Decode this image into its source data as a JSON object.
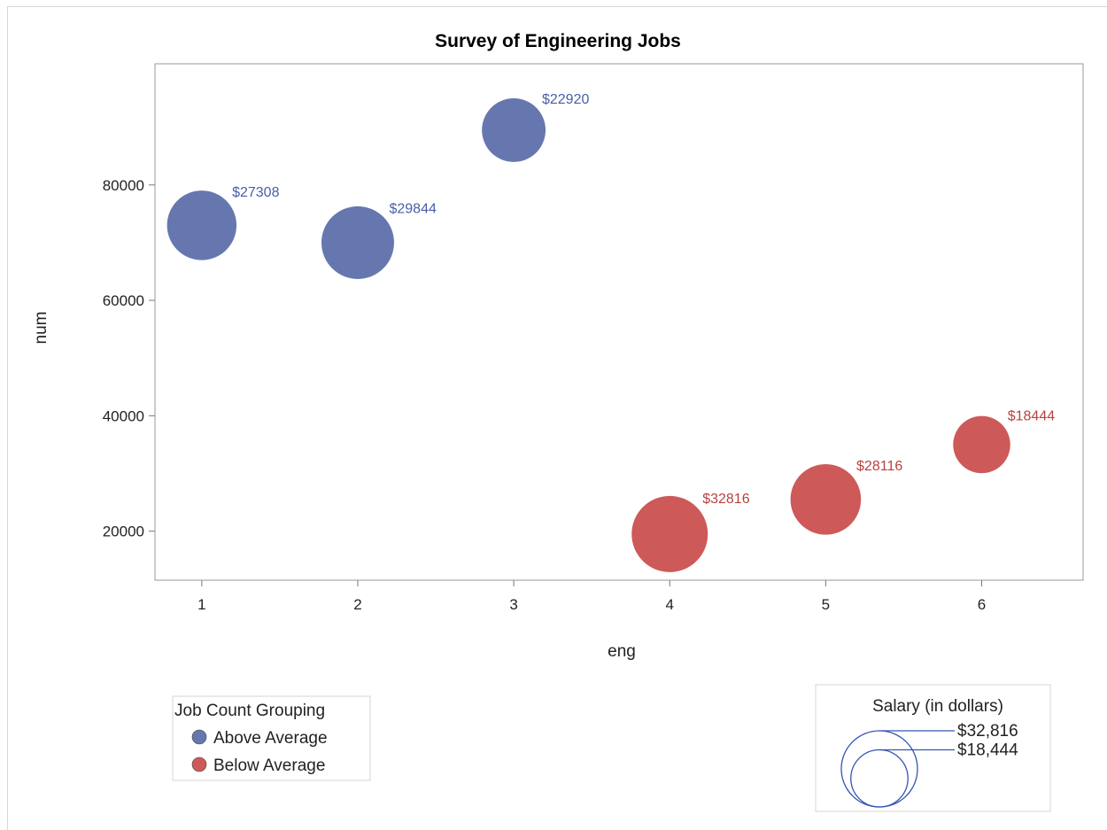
{
  "chart_data": {
    "type": "scatter",
    "subtype": "bubble",
    "title": "Survey of Engineering Jobs",
    "xlabel": "eng",
    "ylabel": "num",
    "xlim": [
      0.7,
      6.65
    ],
    "ylim": [
      11500,
      101000
    ],
    "xticks": [
      1,
      2,
      3,
      4,
      5,
      6
    ],
    "yticks": [
      20000,
      40000,
      60000,
      80000
    ],
    "grid": false,
    "series": [
      {
        "name": "Above Average",
        "color": "#6677b0",
        "label_color": "#4a5ea8",
        "points": [
          {
            "x": 1,
            "y": 73000,
            "size": 27308,
            "label": "$27308"
          },
          {
            "x": 2,
            "y": 70000,
            "size": 29844,
            "label": "$29844"
          },
          {
            "x": 3,
            "y": 89500,
            "size": 22920,
            "label": "$22920"
          }
        ]
      },
      {
        "name": "Below Average",
        "color": "#cd5a58",
        "label_color": "#b84240",
        "points": [
          {
            "x": 4,
            "y": 19500,
            "size": 32816,
            "label": "$32816"
          },
          {
            "x": 5,
            "y": 25500,
            "size": 28116,
            "label": "$28116"
          },
          {
            "x": 6,
            "y": 35000,
            "size": 18444,
            "label": "$18444"
          }
        ]
      }
    ],
    "legend": {
      "title": "Job Count Grouping",
      "placement": "bottom-left",
      "items": [
        "Above Average",
        "Below Average"
      ]
    },
    "size_legend": {
      "title": "Salary (in dollars)",
      "placement": "bottom-right",
      "color": "#3456b0",
      "entries": [
        {
          "value": 32816,
          "label": "$32,816"
        },
        {
          "value": 18444,
          "label": "$18,444"
        }
      ]
    }
  }
}
